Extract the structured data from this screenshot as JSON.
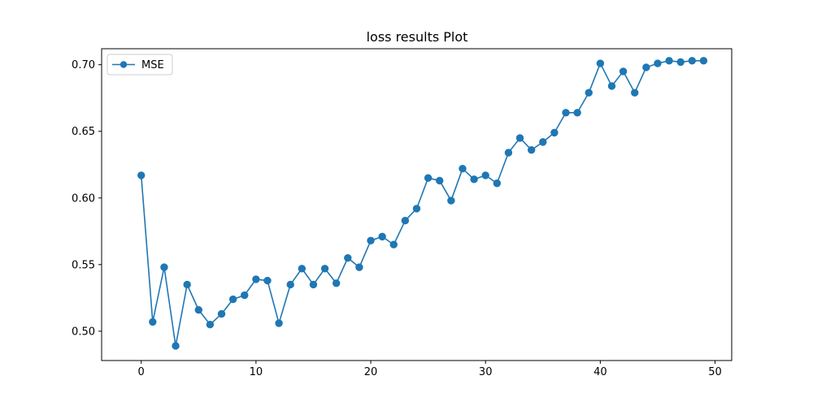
{
  "chart_data": {
    "type": "line",
    "title": "loss results Plot",
    "xlabel": "",
    "ylabel": "",
    "xlim": [
      -3.45,
      51.45
    ],
    "ylim": [
      0.478,
      0.712
    ],
    "x_ticks": [
      0,
      10,
      20,
      30,
      40,
      50
    ],
    "y_ticks": [
      0.5,
      0.55,
      0.6,
      0.65,
      0.7
    ],
    "x_tick_labels": [
      "0",
      "10",
      "20",
      "30",
      "40",
      "50"
    ],
    "y_tick_labels": [
      "0.50",
      "0.55",
      "0.60",
      "0.65",
      "0.70"
    ],
    "grid": false,
    "legend_position": "top-left",
    "series": [
      {
        "name": "MSE",
        "color": "#1f77b4",
        "marker": "circle",
        "x": [
          0,
          1,
          2,
          3,
          4,
          5,
          6,
          7,
          8,
          9,
          10,
          11,
          12,
          13,
          14,
          15,
          16,
          17,
          18,
          19,
          20,
          21,
          22,
          23,
          24,
          25,
          26,
          27,
          28,
          29,
          30,
          31,
          32,
          33,
          34,
          35,
          36,
          37,
          38,
          39,
          40,
          41,
          42,
          43,
          44,
          45,
          46,
          47,
          48,
          49
        ],
        "values": [
          0.617,
          0.507,
          0.548,
          0.489,
          0.535,
          0.516,
          0.505,
          0.513,
          0.524,
          0.527,
          0.539,
          0.538,
          0.506,
          0.535,
          0.547,
          0.535,
          0.547,
          0.536,
          0.555,
          0.548,
          0.568,
          0.571,
          0.565,
          0.583,
          0.592,
          0.615,
          0.613,
          0.598,
          0.622,
          0.614,
          0.617,
          0.611,
          0.634,
          0.645,
          0.636,
          0.642,
          0.649,
          0.664,
          0.664,
          0.679,
          0.701,
          0.684,
          0.695,
          0.679,
          0.698,
          0.701,
          0.703,
          0.702,
          0.703,
          0.703
        ]
      }
    ]
  }
}
